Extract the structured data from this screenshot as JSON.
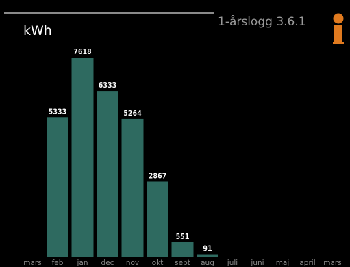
{
  "header": {
    "unit_label": "kWh",
    "title": "1-årslogg 3.6.1",
    "info_icon": "info-icon"
  },
  "colors": {
    "background": "#000000",
    "bar": "#2e6a60",
    "accent": "#e07a1f"
  },
  "chart_data": {
    "type": "bar",
    "categories": [
      "mars",
      "feb",
      "jan",
      "dec",
      "nov",
      "okt",
      "sept",
      "aug",
      "juli",
      "juni",
      "maj",
      "april",
      "mars"
    ],
    "values": [
      null,
      5333,
      7618,
      6333,
      5264,
      2867,
      551,
      91,
      null,
      null,
      null,
      null,
      null
    ],
    "data_labels": [
      "",
      "5333",
      "7618",
      "6333",
      "5264",
      "2867",
      "551",
      "91",
      "",
      "",
      "",
      "",
      ""
    ],
    "ylabel": "kWh",
    "ylim": [
      0,
      9500
    ],
    "grid": false,
    "legend": "none"
  }
}
